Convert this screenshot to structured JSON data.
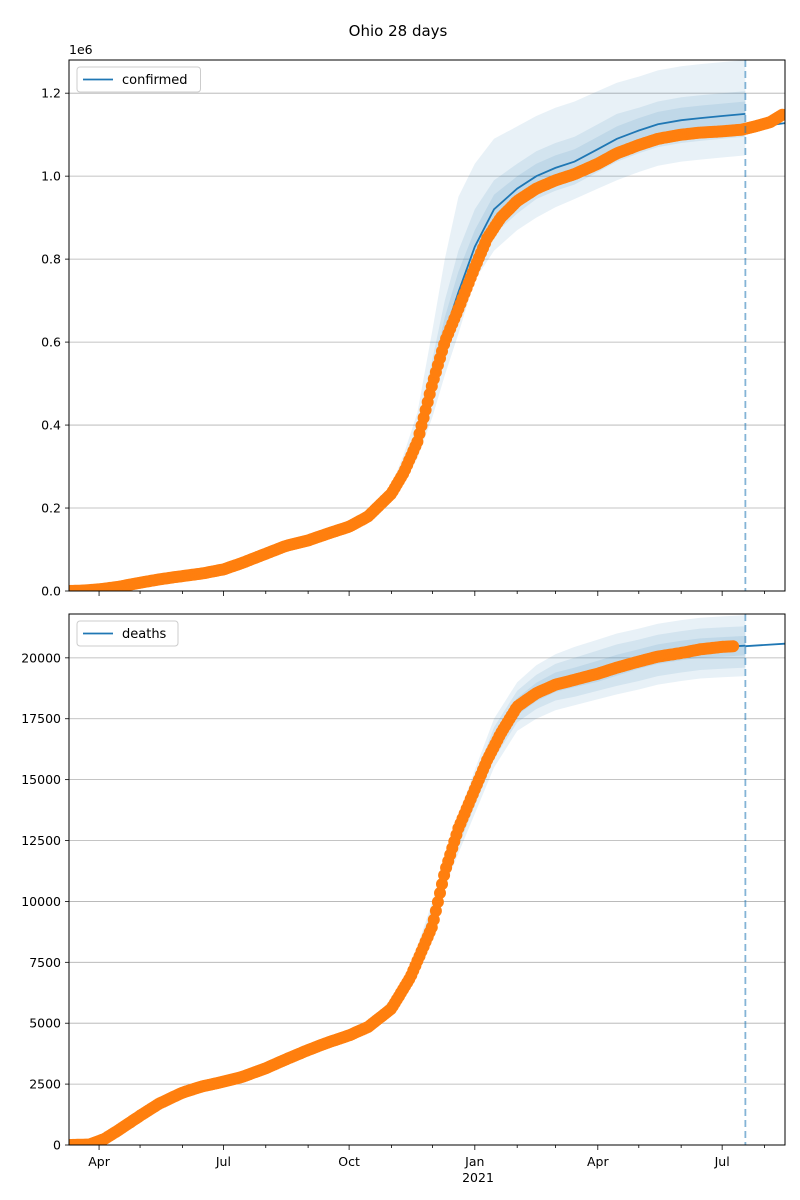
{
  "figure": {
    "title": "Ohio 28 days",
    "x_axis_year_label": "2021"
  },
  "colors": {
    "model": "#1f77b4",
    "observed": "#ff7f0e",
    "grid": "#b0b0b0",
    "cutoff_line": "#1f77b4"
  },
  "chart_data": [
    {
      "type": "line",
      "name": "confirmed-panel",
      "legend": [
        "confirmed"
      ],
      "legend_position": "upper-left",
      "grid": "horizontal",
      "scale_label": "1e6",
      "xlim": [
        "2020-03-10",
        "2021-08-16"
      ],
      "ylim": [
        0,
        1.28
      ],
      "x_ticks": [
        {
          "date": "2020-04-01",
          "label": "Apr"
        },
        {
          "date": "2020-07-01",
          "label": "Jul"
        },
        {
          "date": "2020-10-01",
          "label": "Oct"
        },
        {
          "date": "2021-01-01",
          "label": "Jan"
        },
        {
          "date": "2021-04-01",
          "label": "Apr"
        },
        {
          "date": "2021-07-01",
          "label": "Jul"
        }
      ],
      "y_ticks": [
        {
          "value": 0,
          "label": "0.0"
        },
        {
          "value": 0.2,
          "label": "0.2"
        },
        {
          "value": 0.4,
          "label": "0.4"
        },
        {
          "value": 0.6,
          "label": "0.6"
        },
        {
          "value": 0.8,
          "label": "0.8"
        },
        {
          "value": 1.0,
          "label": "1.0"
        },
        {
          "value": 1.2,
          "label": "1.2"
        }
      ],
      "cutoff_date": "2021-07-18",
      "series": [
        {
          "name": "confirmed",
          "kind": "model",
          "x": [
            "2020-10-01",
            "2020-10-20",
            "2020-11-01",
            "2020-11-10",
            "2020-11-20",
            "2020-12-01",
            "2020-12-10",
            "2020-12-20",
            "2021-01-01",
            "2021-01-15",
            "2021-02-01",
            "2021-02-15",
            "2021-03-01",
            "2021-03-15",
            "2021-04-01",
            "2021-04-15",
            "2021-05-01",
            "2021-05-15",
            "2021-06-01",
            "2021-06-15",
            "2021-07-01",
            "2021-07-18"
          ],
          "y": [
            0.155,
            0.185,
            0.235,
            0.29,
            0.37,
            0.5,
            0.62,
            0.72,
            0.83,
            0.92,
            0.97,
            1.0,
            1.02,
            1.035,
            1.065,
            1.09,
            1.11,
            1.125,
            1.135,
            1.14,
            1.145,
            1.15
          ],
          "outer_upper": [
            0.16,
            0.195,
            0.255,
            0.33,
            0.43,
            0.63,
            0.8,
            0.95,
            1.03,
            1.09,
            1.12,
            1.145,
            1.165,
            1.18,
            1.205,
            1.225,
            1.24,
            1.255,
            1.265,
            1.27,
            1.275,
            1.28
          ],
          "outer_lower": [
            0.15,
            0.175,
            0.215,
            0.26,
            0.32,
            0.42,
            0.52,
            0.62,
            0.75,
            0.82,
            0.87,
            0.9,
            0.925,
            0.945,
            0.97,
            0.99,
            1.01,
            1.025,
            1.035,
            1.04,
            1.045,
            1.05
          ],
          "mid_upper": [
            0.158,
            0.19,
            0.245,
            0.31,
            0.4,
            0.56,
            0.7,
            0.82,
            0.92,
            0.99,
            1.03,
            1.06,
            1.08,
            1.095,
            1.125,
            1.15,
            1.165,
            1.18,
            1.19,
            1.195,
            1.2,
            1.205
          ],
          "mid_lower": [
            0.152,
            0.18,
            0.225,
            0.275,
            0.345,
            0.46,
            0.56,
            0.66,
            0.77,
            0.86,
            0.91,
            0.945,
            0.965,
            0.98,
            1.01,
            1.035,
            1.055,
            1.07,
            1.08,
            1.085,
            1.09,
            1.095
          ],
          "inner_upper": [
            0.156,
            0.187,
            0.24,
            0.3,
            0.385,
            0.53,
            0.66,
            0.77,
            0.87,
            0.955,
            1.0,
            1.03,
            1.05,
            1.065,
            1.095,
            1.12,
            1.14,
            1.155,
            1.165,
            1.17,
            1.175,
            1.18
          ],
          "inner_lower": [
            0.154,
            0.183,
            0.23,
            0.28,
            0.355,
            0.475,
            0.585,
            0.685,
            0.8,
            0.895,
            0.94,
            0.975,
            0.995,
            1.01,
            1.04,
            1.065,
            1.085,
            1.1,
            1.11,
            1.115,
            1.12,
            1.125
          ]
        },
        {
          "name": "confirmed-forecast",
          "kind": "forecast",
          "x": [
            "2021-07-18",
            "2021-08-16"
          ],
          "y": [
            1.115,
            1.128
          ]
        },
        {
          "name": "confirmed-observed",
          "kind": "observed",
          "x": [
            "2020-03-10",
            "2020-03-20",
            "2020-04-01",
            "2020-04-15",
            "2020-05-01",
            "2020-05-15",
            "2020-06-01",
            "2020-06-15",
            "2020-07-01",
            "2020-07-15",
            "2020-08-01",
            "2020-08-15",
            "2020-09-01",
            "2020-09-15",
            "2020-10-01",
            "2020-10-15",
            "2020-11-01",
            "2020-11-10",
            "2020-11-20",
            "2020-12-01",
            "2020-12-10",
            "2020-12-20",
            "2021-01-01",
            "2021-01-10",
            "2021-01-20",
            "2021-02-01",
            "2021-02-15",
            "2021-03-01",
            "2021-03-15",
            "2021-04-01",
            "2021-04-15",
            "2021-05-01",
            "2021-05-15",
            "2021-06-01",
            "2021-06-15",
            "2021-07-01",
            "2021-07-15",
            "2021-07-25",
            "2021-08-05",
            "2021-08-15"
          ],
          "y": [
            0,
            0.001,
            0.004,
            0.01,
            0.02,
            0.028,
            0.036,
            0.042,
            0.052,
            0.068,
            0.09,
            0.108,
            0.122,
            0.138,
            0.155,
            0.18,
            0.235,
            0.285,
            0.36,
            0.5,
            0.6,
            0.68,
            0.78,
            0.85,
            0.9,
            0.94,
            0.97,
            0.99,
            1.005,
            1.03,
            1.055,
            1.075,
            1.09,
            1.1,
            1.105,
            1.108,
            1.112,
            1.12,
            1.13,
            1.15
          ]
        }
      ]
    },
    {
      "type": "line",
      "name": "deaths-panel",
      "legend": [
        "deaths"
      ],
      "legend_position": "upper-left",
      "grid": "horizontal",
      "xlim": [
        "2020-03-10",
        "2021-08-16"
      ],
      "ylim": [
        0,
        21800
      ],
      "x_ticks": [
        {
          "date": "2020-04-01",
          "label": "Apr"
        },
        {
          "date": "2020-07-01",
          "label": "Jul"
        },
        {
          "date": "2020-10-01",
          "label": "Oct"
        },
        {
          "date": "2021-01-01",
          "label": "Jan"
        },
        {
          "date": "2021-04-01",
          "label": "Apr"
        },
        {
          "date": "2021-07-01",
          "label": "Jul"
        }
      ],
      "y_ticks": [
        {
          "value": 0,
          "label": "0"
        },
        {
          "value": 2500,
          "label": "2500"
        },
        {
          "value": 5000,
          "label": "5000"
        },
        {
          "value": 7500,
          "label": "7500"
        },
        {
          "value": 10000,
          "label": "10000"
        },
        {
          "value": 12500,
          "label": "12500"
        },
        {
          "value": 15000,
          "label": "15000"
        },
        {
          "value": 17500,
          "label": "17500"
        },
        {
          "value": 20000,
          "label": "20000"
        }
      ],
      "cutoff_date": "2021-07-18",
      "series": [
        {
          "name": "deaths",
          "kind": "model",
          "x": [
            "2020-10-01",
            "2020-10-20",
            "2020-11-01",
            "2020-11-15",
            "2020-12-01",
            "2020-12-15",
            "2021-01-01",
            "2021-01-15",
            "2021-02-01",
            "2021-02-15",
            "2021-03-01",
            "2021-03-15",
            "2021-04-01",
            "2021-04-15",
            "2021-05-01",
            "2021-05-15",
            "2021-06-01",
            "2021-06-15",
            "2021-07-01",
            "2021-07-18"
          ],
          "y": [
            4500,
            5000,
            5800,
            7000,
            9500,
            12000,
            14500,
            16500,
            18000,
            18600,
            19000,
            19200,
            19450,
            19700,
            19950,
            20150,
            20300,
            20400,
            20450,
            20500
          ],
          "outer_upper": [
            4650,
            5200,
            6050,
            7350,
            10000,
            12700,
            15400,
            17500,
            19000,
            19700,
            20150,
            20450,
            20750,
            21000,
            21200,
            21400,
            21550,
            21650,
            21700,
            21750
          ],
          "outer_lower": [
            4350,
            4800,
            5550,
            6650,
            9000,
            11300,
            13600,
            15500,
            17000,
            17500,
            17850,
            18050,
            18300,
            18500,
            18700,
            18900,
            19050,
            19150,
            19200,
            19250
          ],
          "mid_upper": [
            4600,
            5130,
            5950,
            7220,
            9800,
            12450,
            15050,
            17150,
            18650,
            19300,
            19750,
            20000,
            20300,
            20550,
            20750,
            20950,
            21100,
            21200,
            21250,
            21300
          ],
          "mid_lower": [
            4400,
            4870,
            5650,
            6780,
            9200,
            11550,
            13950,
            15850,
            17350,
            17900,
            18250,
            18400,
            18650,
            18850,
            19050,
            19250,
            19400,
            19500,
            19550,
            19600
          ],
          "inner_upper": [
            4550,
            5070,
            5880,
            7110,
            9650,
            12230,
            14750,
            16850,
            18350,
            18980,
            19400,
            19600,
            19880,
            20130,
            20350,
            20550,
            20700,
            20800,
            20850,
            20900
          ],
          "inner_lower": [
            4450,
            4930,
            5720,
            6890,
            9350,
            11770,
            14250,
            16150,
            17650,
            18220,
            18600,
            18800,
            19020,
            19270,
            19550,
            19750,
            19900,
            20000,
            20050,
            20100
          ]
        },
        {
          "name": "deaths-forecast",
          "kind": "forecast",
          "x": [
            "2021-07-18",
            "2021-08-16"
          ],
          "y": [
            20480,
            20580
          ]
        },
        {
          "name": "deaths-observed",
          "kind": "observed",
          "x": [
            "2020-03-10",
            "2020-03-25",
            "2020-04-05",
            "2020-04-15",
            "2020-05-01",
            "2020-05-15",
            "2020-06-01",
            "2020-06-15",
            "2020-07-01",
            "2020-07-15",
            "2020-08-01",
            "2020-08-15",
            "2020-09-01",
            "2020-09-15",
            "2020-10-01",
            "2020-10-15",
            "2020-11-01",
            "2020-11-15",
            "2020-12-01",
            "2020-12-10",
            "2020-12-20",
            "2021-01-01",
            "2021-01-10",
            "2021-01-20",
            "2021-02-01",
            "2021-02-15",
            "2021-03-01",
            "2021-03-15",
            "2021-04-01",
            "2021-04-15",
            "2021-05-01",
            "2021-05-15",
            "2021-06-01",
            "2021-06-15",
            "2021-07-01",
            "2021-07-10"
          ],
          "y": [
            0,
            20,
            250,
            600,
            1200,
            1700,
            2150,
            2400,
            2600,
            2800,
            3150,
            3500,
            3900,
            4200,
            4500,
            4850,
            5600,
            6900,
            9000,
            11200,
            13000,
            14600,
            15800,
            16900,
            18000,
            18550,
            18900,
            19100,
            19350,
            19600,
            19850,
            20050,
            20200,
            20350,
            20450,
            20480
          ]
        }
      ]
    }
  ]
}
